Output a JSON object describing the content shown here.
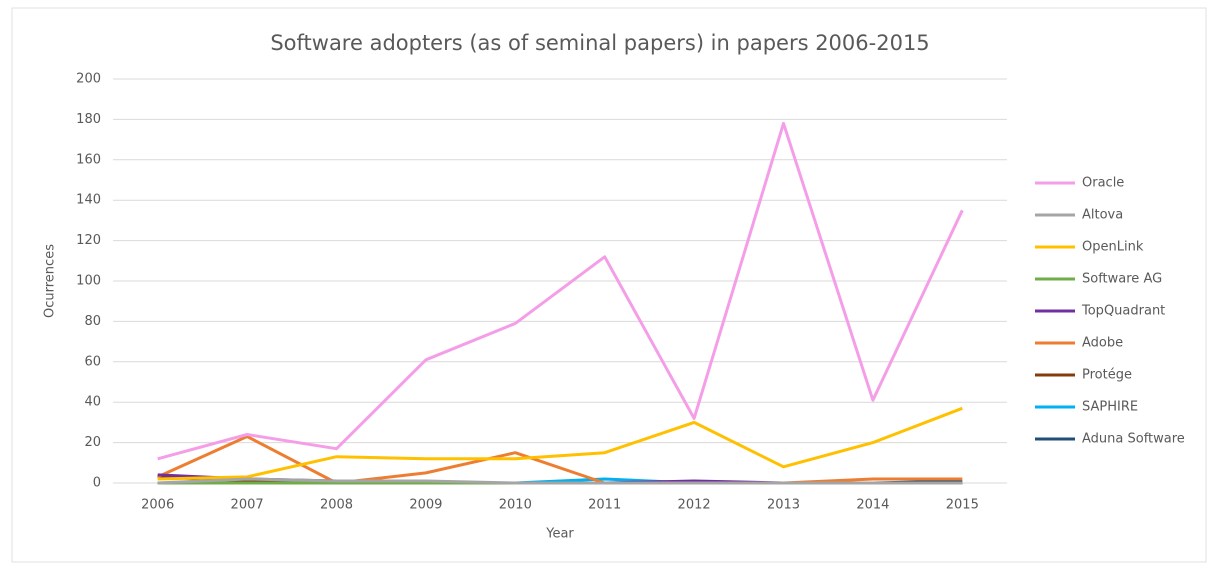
{
  "chart_data": {
    "type": "line",
    "title": "Software adopters (as of seminal papers) in papers 2006-2015",
    "x_label": "Year",
    "y_label": "Ocurrences",
    "categories": [
      "2006",
      "2007",
      "2008",
      "2009",
      "2010",
      "2011",
      "2012",
      "2013",
      "2014",
      "2015"
    ],
    "series": [
      {
        "name": "Oracle",
        "color": "#f59ee8",
        "values": [
          12,
          24,
          17,
          61,
          79,
          112,
          32,
          178,
          41,
          135
        ]
      },
      {
        "name": "Altova",
        "color": "#a5a5a5",
        "values": [
          0,
          2,
          1,
          1,
          0,
          0,
          0,
          0,
          0,
          0
        ]
      },
      {
        "name": "OpenLink",
        "color": "#ffc000",
        "values": [
          2,
          3,
          13,
          12,
          12,
          15,
          30,
          8,
          20,
          37
        ]
      },
      {
        "name": "Software AG",
        "color": "#70ad47",
        "values": [
          0,
          0,
          0,
          0,
          0,
          0,
          0,
          0,
          0,
          0
        ]
      },
      {
        "name": "TopQuadrant",
        "color": "#7030a0",
        "values": [
          4,
          2,
          1,
          0,
          0,
          0,
          1,
          0,
          0,
          0
        ]
      },
      {
        "name": "Adobe",
        "color": "#ed7d31",
        "values": [
          3,
          23,
          0,
          5,
          15,
          0,
          0,
          0,
          2,
          2
        ]
      },
      {
        "name": "Protége",
        "color": "#843c0c",
        "values": [
          3,
          1,
          0,
          0,
          0,
          0,
          0,
          0,
          0,
          0
        ]
      },
      {
        "name": "SAPHIRE",
        "color": "#00b0f0",
        "values": [
          0,
          0,
          0,
          0,
          0,
          2,
          0,
          0,
          0,
          0
        ]
      },
      {
        "name": "Aduna Software",
        "color": "#1f4e79",
        "values": [
          0,
          0,
          0,
          0,
          0,
          0,
          0,
          0,
          0,
          1
        ]
      }
    ],
    "ylim": [
      0,
      200
    ],
    "yticks": [
      0,
      20,
      40,
      60,
      80,
      100,
      120,
      140,
      160,
      180,
      200
    ],
    "grid": true,
    "legend": "right"
  }
}
